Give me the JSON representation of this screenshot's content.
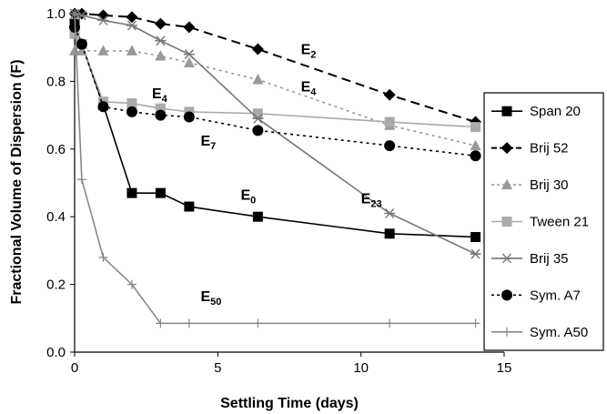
{
  "chart_data": {
    "type": "line",
    "title": "",
    "xlabel": "Settling Time (days)",
    "ylabel": "Fractional Volume of Dispersion (F)",
    "xlim": [
      0,
      15
    ],
    "ylim": [
      0,
      1.0
    ],
    "x_ticks": [
      "0",
      "5",
      "10",
      "15"
    ],
    "y_ticks": [
      "0.0",
      "0.2",
      "0.4",
      "0.6",
      "0.8",
      "1.0"
    ],
    "grid": false,
    "legend_position": "right",
    "series": [
      {
        "name": "Span 20",
        "color": "#000000",
        "dash": "solid",
        "marker": "square",
        "x": [
          0,
          0.25,
          1,
          2,
          3,
          4,
          6.4,
          11,
          14
        ],
        "y": [
          0.97,
          0.91,
          0.73,
          0.47,
          0.47,
          0.43,
          0.4,
          0.35,
          0.34
        ]
      },
      {
        "name": "Brij 52",
        "color": "#000000",
        "dash": "long-dash",
        "marker": "diamond",
        "x": [
          0,
          0.25,
          1,
          2,
          3,
          4,
          6.4,
          11,
          14
        ],
        "y": [
          1.0,
          1.0,
          0.995,
          0.99,
          0.97,
          0.96,
          0.895,
          0.76,
          0.68
        ]
      },
      {
        "name": "Brij 30",
        "color": "#999999",
        "dash": "dotted",
        "marker": "triangle",
        "x": [
          0,
          0.25,
          1,
          2,
          3,
          4,
          6.4,
          11,
          14
        ],
        "y": [
          0.89,
          0.89,
          0.89,
          0.89,
          0.875,
          0.855,
          0.805,
          0.67,
          0.61
        ]
      },
      {
        "name": "Tween 21",
        "color": "#aaaaaa",
        "dash": "solid",
        "marker": "square",
        "x": [
          0,
          0.25,
          1,
          2,
          3,
          4,
          6.4,
          11,
          14
        ],
        "y": [
          0.94,
          0.91,
          0.74,
          0.735,
          0.72,
          0.71,
          0.705,
          0.68,
          0.665
        ]
      },
      {
        "name": "Brij 35",
        "color": "#777777",
        "dash": "solid",
        "marker": "asterisk",
        "x": [
          0,
          0.25,
          1,
          2,
          3,
          4,
          6.4,
          11,
          14
        ],
        "y": [
          1.0,
          0.995,
          0.98,
          0.965,
          0.92,
          0.88,
          0.69,
          0.41,
          0.29
        ]
      },
      {
        "name": "Sym. A7",
        "color": "#000000",
        "dash": "dotted",
        "marker": "circle",
        "x": [
          0,
          0.25,
          1,
          2,
          3,
          4,
          6.4,
          11,
          14
        ],
        "y": [
          0.96,
          0.91,
          0.725,
          0.71,
          0.7,
          0.695,
          0.655,
          0.61,
          0.58
        ]
      },
      {
        "name": "Sym. A50",
        "color": "#888888",
        "dash": "solid",
        "marker": "plus",
        "x": [
          0,
          0.25,
          1,
          2,
          3,
          4,
          6.4,
          11,
          14
        ],
        "y": [
          1.0,
          0.51,
          0.28,
          0.2,
          0.085,
          0.085,
          0.085,
          0.085,
          0.085
        ]
      }
    ],
    "annotations": [
      {
        "main": "E",
        "sub": "2",
        "x": 7.9,
        "y": 0.88
      },
      {
        "main": "E",
        "sub": "4",
        "x": 7.9,
        "y": 0.77
      },
      {
        "main": "E",
        "sub": "4",
        "x": 2.7,
        "y": 0.75
      },
      {
        "main": "E",
        "sub": "7",
        "x": 4.4,
        "y": 0.61
      },
      {
        "main": "E",
        "sub": "0",
        "x": 5.8,
        "y": 0.45
      },
      {
        "main": "E",
        "sub": "23",
        "x": 10.0,
        "y": 0.44
      },
      {
        "main": "E",
        "sub": "50",
        "x": 4.4,
        "y": 0.15
      }
    ]
  }
}
